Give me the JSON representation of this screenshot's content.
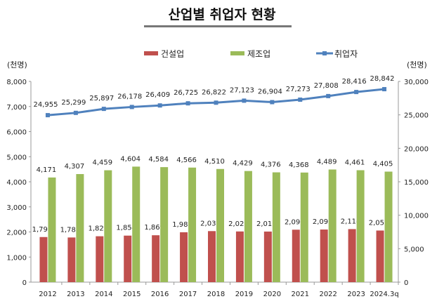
{
  "chart_data": {
    "type": "bar+line",
    "title": "산업별 취업자 현황",
    "categories": [
      "2012",
      "2013",
      "2014",
      "2015",
      "2016",
      "2017",
      "2018",
      "2019",
      "2020",
      "2021",
      "2022",
      "2023",
      "2024.3q"
    ],
    "series": [
      {
        "name": "건설업",
        "type": "bar",
        "axis": "left",
        "color": "#c0504d",
        "values": [
          1797,
          1780,
          1829,
          1854,
          1869,
          1988,
          2034,
          2020,
          2016,
          2090,
          2097,
          2114,
          2057
        ]
      },
      {
        "name": "제조업",
        "type": "bar",
        "axis": "left",
        "color": "#9bbb59",
        "values": [
          4171,
          4307,
          4459,
          4604,
          4584,
          4566,
          4510,
          4429,
          4376,
          4368,
          4489,
          4461,
          4405
        ]
      },
      {
        "name": "취업자",
        "type": "line",
        "axis": "right",
        "color": "#4f81bd",
        "values": [
          24955,
          25299,
          25897,
          26178,
          26409,
          26725,
          26822,
          27123,
          26904,
          27273,
          27808,
          28416,
          28842
        ]
      }
    ],
    "ylabel_left": "(천명)",
    "ylabel_right": "(천명)",
    "ylim_left": [
      0,
      8000
    ],
    "ylim_right": [
      0,
      30000
    ],
    "yticks_left": [
      "0",
      "1,000",
      "2,000",
      "3,000",
      "4,000",
      "5,000",
      "6,000",
      "7,000",
      "8,000"
    ],
    "yticks_right": [
      "0",
      "5,000",
      "10,000",
      "15,000",
      "20,000",
      "25,000",
      "30,000"
    ],
    "grid": false,
    "legend": "top"
  }
}
